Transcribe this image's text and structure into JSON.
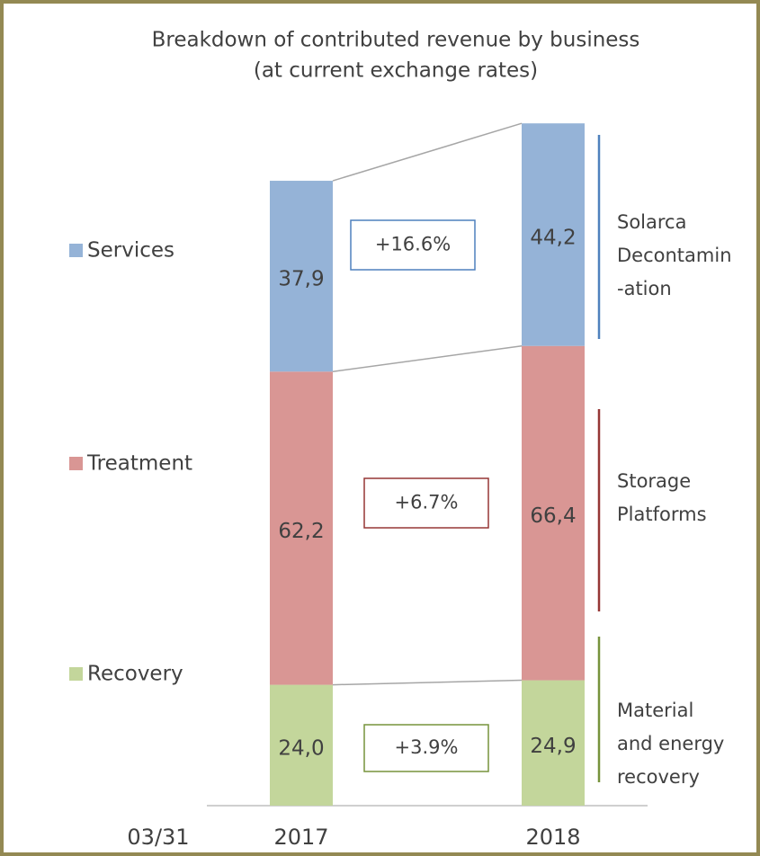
{
  "chart_data": {
    "type": "bar",
    "stacked": true,
    "title": "Breakdown of contributed revenue by business",
    "subtitle": "(at current exchange rates)",
    "x_label": "03/31",
    "categories": [
      "2017",
      "2018"
    ],
    "series": [
      {
        "name": "Recovery",
        "color": "#c3d69b",
        "values": [
          24.0,
          24.9
        ],
        "value_labels": [
          "24,0",
          "24,9"
        ]
      },
      {
        "name": "Treatment",
        "color": "#d99694",
        "values": [
          62.2,
          66.4
        ],
        "value_labels": [
          "62,2",
          "66,4"
        ]
      },
      {
        "name": "Services",
        "color": "#95b3d7",
        "values": [
          37.9,
          44.2
        ],
        "value_labels": [
          "37,9",
          "44,2"
        ]
      }
    ],
    "ylim": [
      0,
      140
    ],
    "annotations": [
      {
        "text": "+3.9%",
        "color": "#77933c"
      },
      {
        "text": "+6.7%",
        "color": "#953735"
      },
      {
        "text": "+16.6%",
        "color": "#4f81bd"
      }
    ],
    "groups": [
      {
        "lines": [
          "Material",
          "and energy",
          "recovery"
        ],
        "color": "#77933c"
      },
      {
        "lines": [
          "Storage",
          "Platforms"
        ],
        "color": "#953735"
      },
      {
        "lines": [
          "Solarca",
          "Decontamin",
          "-ation"
        ],
        "color": "#4f81bd"
      }
    ]
  }
}
